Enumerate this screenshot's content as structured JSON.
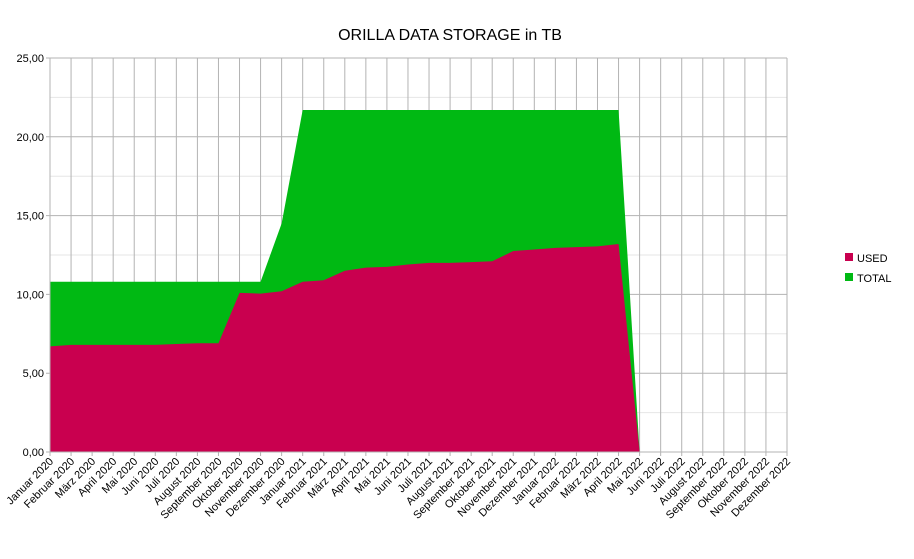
{
  "chart_data": {
    "type": "area",
    "stacked": false,
    "title": "ORILLA DATA STORAGE in TB",
    "categories": [
      "Januar 2020",
      "Februar 2020",
      "März 2020",
      "April 2020",
      "Mai 2020",
      "Juni 2020",
      "Juli 2020",
      "August 2020",
      "September 2020",
      "Oktober 2020",
      "November 2020",
      "Dezember 2020",
      "Januar 2021",
      "Februar 2021",
      "März 2021",
      "April 2021",
      "Mai 2021",
      "Juni 2021",
      "Juli 2021",
      "August 2021",
      "September 2021",
      "Oktober 2021",
      "November 2021",
      "Dezember 2021",
      "Januar 2022",
      "Februar 2022",
      "März 2022",
      "April 2022",
      "Mai 2022",
      "Juni 2022",
      "Juli 2022",
      "August 2022",
      "September 2022",
      "Oktober 2022",
      "November 2022",
      "Dezember 2022"
    ],
    "series": [
      {
        "name": "TOTAL",
        "color": "#00b913",
        "values": [
          10.8,
          10.8,
          10.8,
          10.8,
          10.8,
          10.8,
          10.8,
          10.8,
          10.8,
          10.8,
          10.8,
          14.5,
          21.7,
          21.7,
          21.7,
          21.7,
          21.7,
          21.7,
          21.7,
          21.7,
          21.7,
          21.7,
          21.7,
          21.7,
          21.7,
          21.7,
          21.7,
          21.7,
          0,
          null,
          null,
          null,
          null,
          null,
          null,
          null
        ]
      },
      {
        "name": "USED",
        "color": "#c9004f",
        "values": [
          6.7,
          6.8,
          6.8,
          6.8,
          6.8,
          6.8,
          6.85,
          6.9,
          6.9,
          10.1,
          10.05,
          10.2,
          10.8,
          10.9,
          11.5,
          11.7,
          11.75,
          11.9,
          12.0,
          12.0,
          12.05,
          12.1,
          12.75,
          12.85,
          12.95,
          13.0,
          13.05,
          13.2,
          0,
          null,
          null,
          null,
          null,
          null,
          null,
          null
        ]
      }
    ],
    "ylim": [
      0,
      25
    ],
    "yticks": [
      {
        "value": 0,
        "label": "0,00"
      },
      {
        "value": 5,
        "label": "5,00"
      },
      {
        "value": 10,
        "label": "10,00"
      },
      {
        "value": 15,
        "label": "15,00"
      },
      {
        "value": 20,
        "label": "20,00"
      },
      {
        "value": 25,
        "label": "25,00"
      }
    ],
    "grid": true,
    "legend": "right"
  }
}
